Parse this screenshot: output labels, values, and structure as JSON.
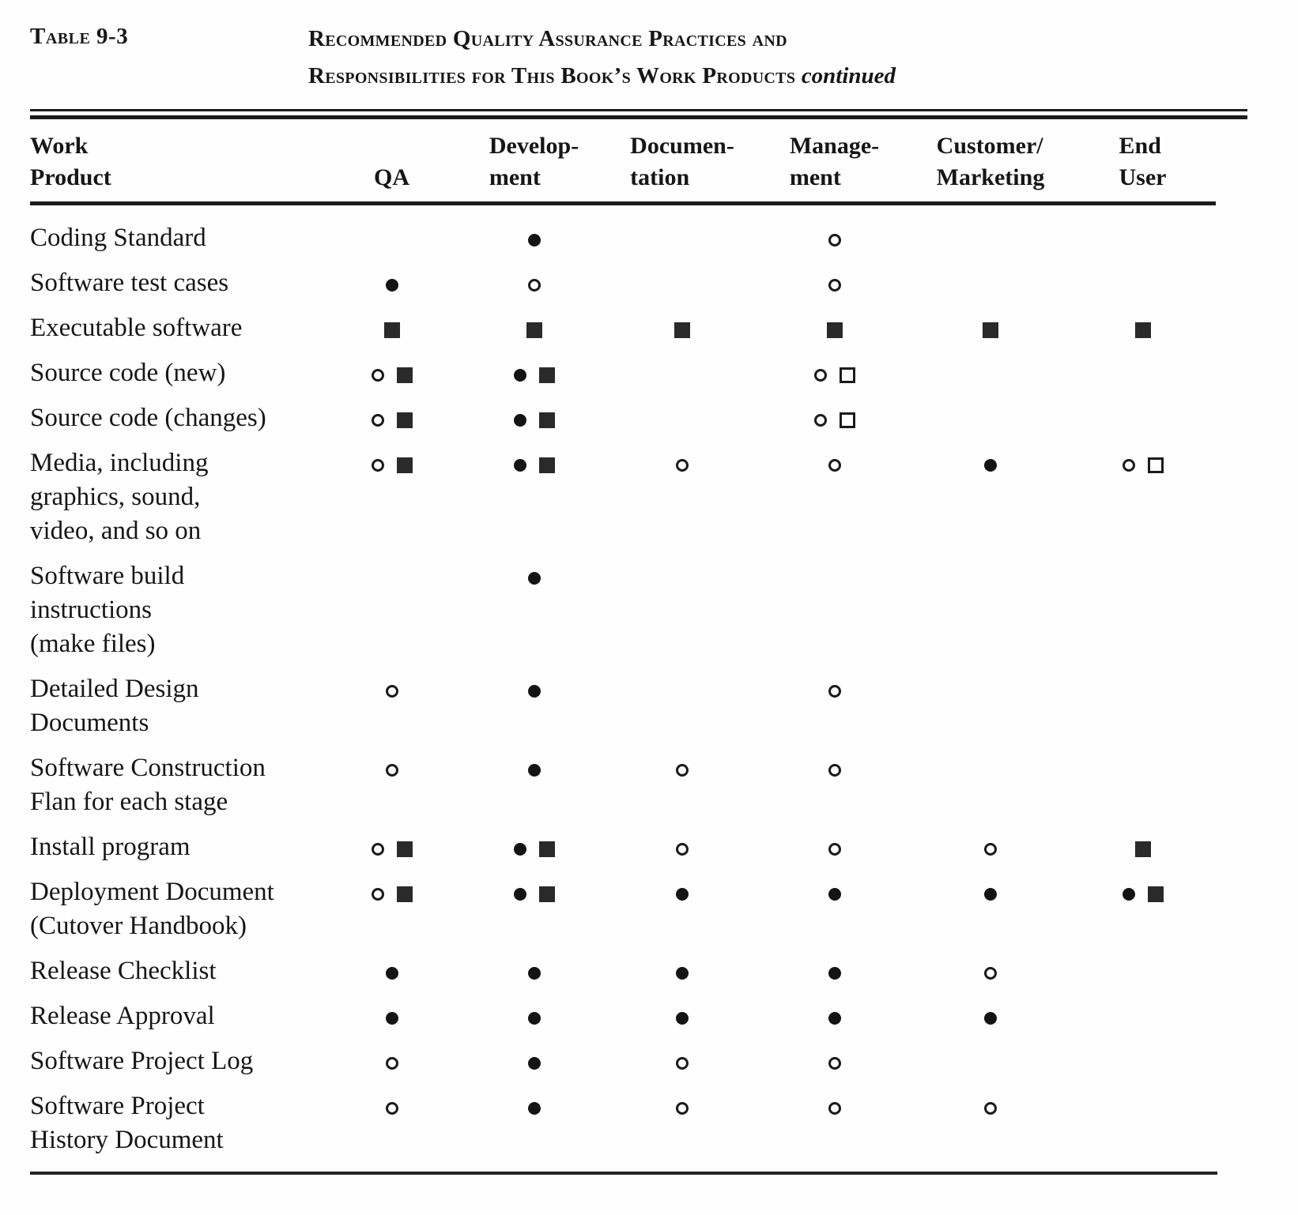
{
  "page": {
    "table_label": "Table 9-3",
    "title_line1": "Recommended Quality Assurance Practices and",
    "title_line2": "Responsibilities for This Book’s Work Products",
    "title_continued": "continued"
  },
  "symbols": {
    "filled-circle": "●",
    "open-circle": "○",
    "filled-square": "■",
    "open-square": "□"
  },
  "table": {
    "columns": [
      {
        "key": "work-product",
        "label": "Work\nProduct"
      },
      {
        "key": "qa",
        "label": "QA"
      },
      {
        "key": "development",
        "label": "Develop-\nment"
      },
      {
        "key": "documentation",
        "label": "Documen-\ntation"
      },
      {
        "key": "management",
        "label": "Manage-\nment"
      },
      {
        "key": "customer-marketing",
        "label": "Customer/\nMarketing"
      },
      {
        "key": "end-user",
        "label": "End\nUser"
      }
    ],
    "rows": [
      {
        "product": "Coding Standard",
        "cells": [
          [],
          [
            "filled-circle"
          ],
          [],
          [
            "open-circle"
          ],
          [],
          []
        ]
      },
      {
        "product": "Software test cases",
        "cells": [
          [
            "filled-circle"
          ],
          [
            "open-circle"
          ],
          [],
          [
            "open-circle"
          ],
          [],
          []
        ]
      },
      {
        "product": "Executable software",
        "cells": [
          [
            "filled-square"
          ],
          [
            "filled-square"
          ],
          [
            "filled-square"
          ],
          [
            "filled-square"
          ],
          [
            "filled-square"
          ],
          [
            "filled-square"
          ]
        ]
      },
      {
        "product": "Source code (new)",
        "cells": [
          [
            "open-circle",
            "filled-square"
          ],
          [
            "filled-circle",
            "filled-square"
          ],
          [],
          [
            "open-circle",
            "open-square"
          ],
          [],
          []
        ]
      },
      {
        "product": "Source code (changes)",
        "cells": [
          [
            "open-circle",
            "filled-square"
          ],
          [
            "filled-circle",
            "filled-square"
          ],
          [],
          [
            "open-circle",
            "open-square"
          ],
          [],
          []
        ]
      },
      {
        "product": "Media, including\ngraphics, sound,\nvideo, and so on",
        "cells": [
          [
            "open-circle",
            "filled-square"
          ],
          [
            "filled-circle",
            "filled-square"
          ],
          [
            "open-circle"
          ],
          [
            "open-circle"
          ],
          [
            "filled-circle"
          ],
          [
            "open-circle",
            "open-square"
          ]
        ]
      },
      {
        "product": "Software build\ninstructions\n(make files)",
        "cells": [
          [],
          [
            "filled-circle"
          ],
          [],
          [],
          [],
          []
        ]
      },
      {
        "product": "Detailed Design\nDocuments",
        "cells": [
          [
            "open-circle"
          ],
          [
            "filled-circle"
          ],
          [],
          [
            "open-circle"
          ],
          [],
          []
        ]
      },
      {
        "product": "Software Construction\nFlan for each stage",
        "cells": [
          [
            "open-circle"
          ],
          [
            "filled-circle"
          ],
          [
            "open-circle"
          ],
          [
            "open-circle"
          ],
          [],
          []
        ]
      },
      {
        "product": "Install program",
        "cells": [
          [
            "open-circle",
            "filled-square"
          ],
          [
            "filled-circle",
            "filled-square"
          ],
          [
            "open-circle"
          ],
          [
            "open-circle"
          ],
          [
            "open-circle"
          ],
          [
            "filled-square"
          ]
        ]
      },
      {
        "product": "Deployment Document\n(Cutover Handbook)",
        "cells": [
          [
            "open-circle",
            "filled-square"
          ],
          [
            "filled-circle",
            "filled-square"
          ],
          [
            "filled-circle"
          ],
          [
            "filled-circle"
          ],
          [
            "filled-circle"
          ],
          [
            "filled-circle",
            "filled-square"
          ]
        ]
      },
      {
        "product": "Release Checklist",
        "cells": [
          [
            "filled-circle"
          ],
          [
            "filled-circle"
          ],
          [
            "filled-circle"
          ],
          [
            "filled-circle"
          ],
          [
            "open-circle"
          ],
          []
        ]
      },
      {
        "product": "Release Approval",
        "cells": [
          [
            "filled-circle"
          ],
          [
            "filled-circle"
          ],
          [
            "filled-circle"
          ],
          [
            "filled-circle"
          ],
          [
            "filled-circle"
          ],
          []
        ]
      },
      {
        "product": "Software Project Log",
        "cells": [
          [
            "open-circle"
          ],
          [
            "filled-circle"
          ],
          [
            "open-circle"
          ],
          [
            "open-circle"
          ],
          [],
          []
        ]
      },
      {
        "product": "Software Project\nHistory Document",
        "cells": [
          [
            "open-circle"
          ],
          [
            "filled-circle"
          ],
          [
            "open-circle"
          ],
          [
            "open-circle"
          ],
          [
            "open-circle"
          ],
          []
        ]
      }
    ]
  }
}
